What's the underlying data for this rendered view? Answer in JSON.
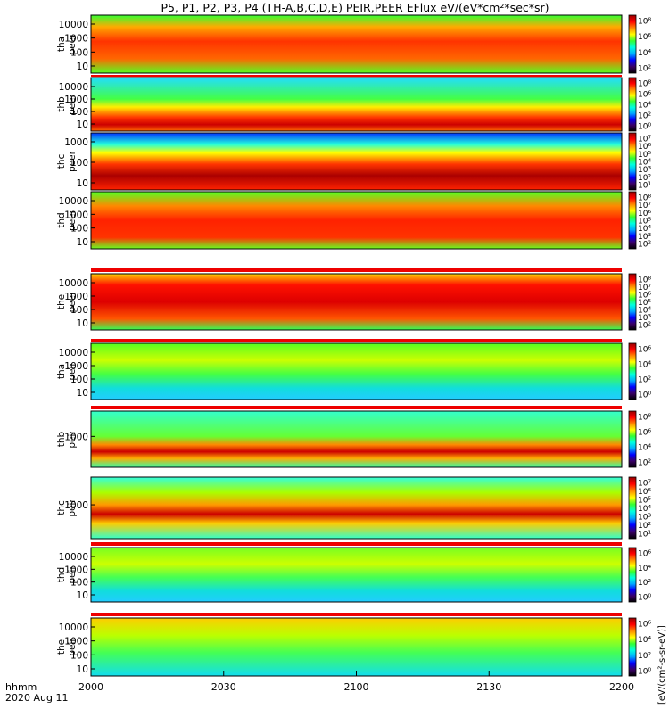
{
  "chart_data": {
    "type": "heatmap",
    "title": "P5, P1, P2, P3, P4 (TH-A,B,C,D,E) PEIR,PEER EFlux eV/(eV*cm²*sec*sr)",
    "x_axis": {
      "tick_labels": [
        "2000",
        "2030",
        "2100",
        "2130",
        "2200"
      ],
      "range": [
        "20:00",
        "22:00"
      ],
      "label_line1": "hhmm",
      "label_line2": "2020 Aug 11"
    },
    "colorbar": {
      "label": "[eV/(cm²-s-sr-eV)]",
      "scale": "log",
      "colors": [
        "#000000",
        "#3a0066",
        "#0000ff",
        "#00aaff",
        "#00ffe0",
        "#33ff33",
        "#ffff00",
        "#ff8800",
        "#ff0000",
        "#990000"
      ]
    },
    "panels": [
      {
        "probe": "tha",
        "species": "peer",
        "ylabel1": "tha",
        "ylabel2": "peer",
        "yticks": [
          "10000",
          "1000",
          "100",
          "10"
        ],
        "cbar_ticks": [
          "10⁸",
          "10⁶",
          "10⁴",
          "10²"
        ]
      },
      {
        "probe": "thb",
        "species": "peer",
        "ylabel1": "thb",
        "ylabel2": "peer",
        "yticks": [
          "10000",
          "1000",
          "100",
          "10"
        ],
        "cbar_ticks": [
          "10⁸",
          "10⁶",
          "10⁴",
          "10²",
          "10⁰"
        ]
      },
      {
        "probe": "thc",
        "species": "peer",
        "ylabel1": "thc",
        "ylabel2": "peer",
        "yticks": [
          "1000",
          "100",
          "10"
        ],
        "cbar_ticks": [
          "10⁷",
          "10⁶",
          "10⁵",
          "10⁴",
          "10³",
          "10²",
          "10¹"
        ]
      },
      {
        "probe": "thd",
        "species": "peer",
        "ylabel1": "thd",
        "ylabel2": "peer",
        "yticks": [
          "10000",
          "1000",
          "100",
          "10"
        ],
        "cbar_ticks": [
          "10⁸",
          "10⁷",
          "10⁶",
          "10⁵",
          "10⁴",
          "10³",
          "10²"
        ]
      },
      {
        "probe": "the",
        "species": "peer",
        "ylabel1": "the",
        "ylabel2": "peer",
        "yticks": [
          "10000",
          "1000",
          "100",
          "10"
        ],
        "cbar_ticks": [
          "10⁸",
          "10⁷",
          "10⁶",
          "10⁵",
          "10⁴",
          "10³",
          "10²"
        ]
      },
      {
        "probe": "tha",
        "species": "peir",
        "ylabel1": "tha",
        "ylabel2": "peir",
        "yticks": [
          "10000",
          "1000",
          "100",
          "10"
        ],
        "cbar_ticks": [
          "10⁶",
          "10⁴",
          "10²",
          "10⁰"
        ]
      },
      {
        "probe": "thb",
        "species": "peir",
        "ylabel1": "thb",
        "ylabel2": "peir",
        "yticks": [
          "1000"
        ],
        "cbar_ticks": [
          "10⁸",
          "10⁶",
          "10⁴",
          "10²"
        ]
      },
      {
        "probe": "thc",
        "species": "peir",
        "ylabel1": "thc",
        "ylabel2": "peir",
        "yticks": [
          "1000"
        ],
        "cbar_ticks": [
          "10⁷",
          "10⁶",
          "10⁵",
          "10⁴",
          "10³",
          "10²",
          "10¹"
        ]
      },
      {
        "probe": "thd",
        "species": "peir",
        "ylabel1": "thd",
        "ylabel2": "peir",
        "yticks": [
          "10000",
          "1000",
          "100",
          "10"
        ],
        "cbar_ticks": [
          "10⁶",
          "10⁴",
          "10²",
          "10⁰"
        ]
      },
      {
        "probe": "the",
        "species": "peir",
        "ylabel1": "the",
        "ylabel2": "peir",
        "yticks": [
          "10000",
          "1000",
          "100",
          "10"
        ],
        "cbar_ticks": [
          "10⁶",
          "10⁴",
          "10²",
          "10⁰"
        ]
      }
    ]
  }
}
